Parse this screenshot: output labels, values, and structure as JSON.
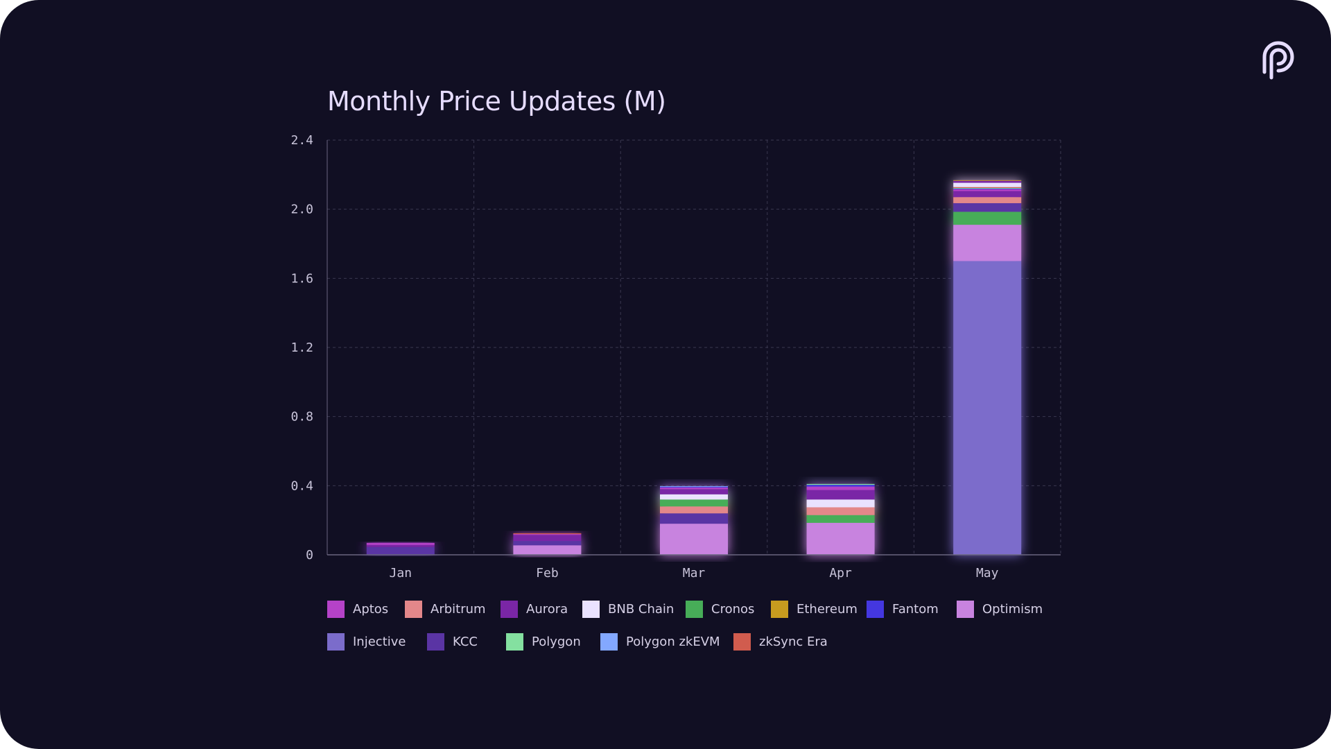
{
  "chart_data": {
    "type": "bar",
    "stacked": true,
    "title": "Monthly Price Updates (M)",
    "xlabel": "",
    "ylabel": "",
    "ylim": [
      0,
      2.4
    ],
    "yticks": [
      "0",
      "0.4",
      "0.8",
      "1.2",
      "1.6",
      "2.0",
      "2.4"
    ],
    "grid": true,
    "legend_position": "bottom",
    "categories": [
      "Jan",
      "Feb",
      "Mar",
      "Apr",
      "May"
    ],
    "series": [
      {
        "name": "Injective",
        "color": "#7b6ccb",
        "values": [
          0,
          0,
          0,
          0,
          1.7
        ]
      },
      {
        "name": "Optimism",
        "color": "#c883df",
        "values": [
          0,
          0.055,
          0.18,
          0.185,
          0.21
        ]
      },
      {
        "name": "Cronos",
        "color": "#47ad58",
        "values": [
          0,
          0,
          0,
          0.045,
          0.075
        ]
      },
      {
        "name": "KCC",
        "color": "#5a34a4",
        "values": [
          0.045,
          0.025,
          0.06,
          0,
          0.05
        ]
      },
      {
        "name": "Arbitrum",
        "color": "#e3878a",
        "values": [
          0,
          0,
          0.04,
          0.045,
          0.035
        ]
      },
      {
        "name": "Cronos ",
        "color": "#47ad58",
        "values": [
          0,
          0,
          0.04,
          0,
          0
        ]
      },
      {
        "name": "BNB Chain",
        "color": "#eae2ff",
        "values": [
          0,
          0,
          0.03,
          0.045,
          0
        ]
      },
      {
        "name": "Aurora",
        "color": "#7a26a6",
        "values": [
          0.012,
          0.035,
          0.03,
          0.055,
          0.035
        ]
      },
      {
        "name": "Aptos",
        "color": "#b542c8",
        "values": [
          0.012,
          0.005,
          0.01,
          0.02,
          0.01
        ]
      },
      {
        "name": "Fantom",
        "color": "#4437e0",
        "values": [
          0,
          0,
          0.003,
          0.01,
          0.005
        ]
      },
      {
        "name": "Polygon",
        "color": "#84e0a0",
        "values": [
          0,
          0,
          0,
          0.005,
          0.003
        ]
      },
      {
        "name": "zkSync Era",
        "color": "#d15c4e",
        "values": [
          0,
          0.005,
          0,
          0,
          0.005
        ]
      },
      {
        "name": "Polygon zkEVM",
        "color": "#83a8ff",
        "values": [
          0,
          0,
          0.004,
          0,
          0
        ]
      },
      {
        "name": "BNB Chain ",
        "color": "#eae2ff",
        "values": [
          0,
          0,
          0,
          0,
          0.025
        ]
      },
      {
        "name": "Aurora ",
        "color": "#7a26a6",
        "values": [
          0,
          0,
          0,
          0,
          0.012
        ]
      },
      {
        "name": "Ethereum",
        "color": "#c79b1f",
        "values": [
          0,
          0,
          0,
          0,
          0.003
        ]
      }
    ]
  },
  "legend": {
    "rows": [
      [
        {
          "label": "Aptos",
          "color": "#b542c8"
        },
        {
          "label": "Arbitrum",
          "color": "#e3878a"
        },
        {
          "label": "Aurora",
          "color": "#7a26a6"
        },
        {
          "label": "BNB Chain",
          "color": "#eae2ff"
        },
        {
          "label": "Cronos",
          "color": "#47ad58"
        },
        {
          "label": "Ethereum",
          "color": "#c79b1f"
        },
        {
          "label": "Fantom",
          "color": "#4437e0"
        },
        {
          "label": "Optimism",
          "color": "#c883df"
        }
      ],
      [
        {
          "label": "Injective",
          "color": "#7b6ccb"
        },
        {
          "label": "KCC",
          "color": "#5a34a4"
        },
        {
          "label": "Polygon",
          "color": "#84e0a0"
        },
        {
          "label": "Polygon zkEVM",
          "color": "#83a8ff"
        },
        {
          "label": "zkSync Era",
          "color": "#d15c4e"
        }
      ]
    ]
  },
  "logo": {
    "icon": "pyth-logo-icon",
    "color": "#e6dcff"
  },
  "theme": {
    "background": "#110f23",
    "grid": "#3a3850",
    "axis": "#6a6680",
    "text": "#c9c4da"
  }
}
